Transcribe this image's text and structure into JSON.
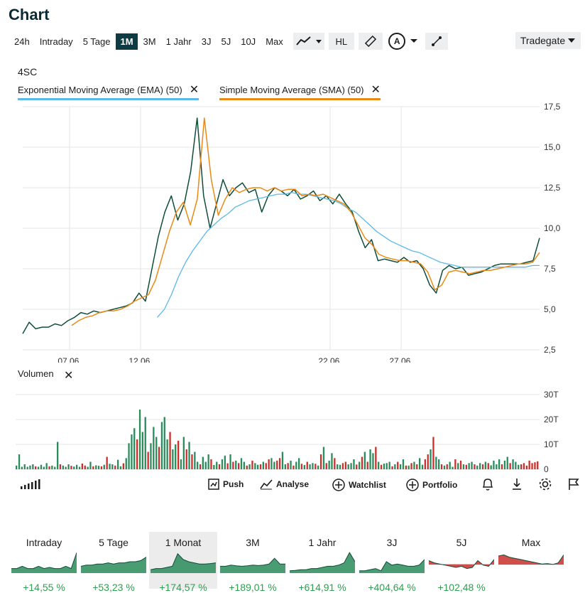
{
  "title": "Chart",
  "ranges": [
    "24h",
    "Intraday",
    "5 Tage",
    "1M",
    "3M",
    "1 Jahr",
    "3J",
    "5J",
    "10J",
    "Max"
  ],
  "active_range": "1M",
  "tools": {
    "hl_label": "HL",
    "annotation_label": "A"
  },
  "exchange": "Tradegate",
  "symbol": "4SC",
  "indicators": [
    {
      "label": "Exponential Moving Average (EMA) (50)",
      "color": "#5bb8e8"
    },
    {
      "label": "Simple Moving Average (SMA) (50)",
      "color": "#e07b12"
    }
  ],
  "close_symbol": "✕",
  "volume_label": "Volumen",
  "colors": {
    "price": "#0e4d3a",
    "up": "#2a8c5b",
    "down": "#c9302c",
    "ema": "#5bb8e8",
    "sma": "#e98a15",
    "grid": "#e5e5e5"
  },
  "actions": {
    "push": "Push",
    "analyse": "Analyse",
    "watchlist": "Watchlist",
    "portfolio": "Portfolio"
  },
  "chart_data": {
    "type": "line",
    "ylim": [
      2.5,
      17.5
    ],
    "y_ticks": [
      "17,5",
      "15,0",
      "12,5",
      "10,0",
      "7,5",
      "5,0",
      "2,5"
    ],
    "x_ticks": [
      "07.06.",
      "12.06.",
      "22.06.",
      "27.06."
    ],
    "series": [
      {
        "name": "4SC",
        "values": [
          3.5,
          4.2,
          3.8,
          3.9,
          3.9,
          4.1,
          4.0,
          4.3,
          4.5,
          4.8,
          4.7,
          4.9,
          4.8,
          4.9,
          5.0,
          5.1,
          5.2,
          5.4,
          6.0,
          5.5,
          7.5,
          9.5,
          11.0,
          12.0,
          10.5,
          11.5,
          13.5,
          16.8,
          12.0,
          10.0,
          11.5,
          13.0,
          12.0,
          12.5,
          12.8,
          12.2,
          12.4,
          11.0,
          12.0,
          12.5,
          12.3,
          12.0,
          12.4,
          11.8,
          12.0,
          12.3,
          11.7,
          12.0,
          11.5,
          12.1,
          11.5,
          11.0,
          9.8,
          8.8,
          9.3,
          8.0,
          8.1,
          8.0,
          7.9,
          8.2,
          7.9,
          8.0,
          7.5,
          6.5,
          6.0,
          7.4,
          7.7,
          7.5,
          7.6,
          7.1,
          7.2,
          7.3,
          7.5,
          7.7,
          7.8,
          7.8,
          7.8,
          7.8,
          7.9,
          8.0,
          9.4
        ]
      },
      {
        "name": "EMA (50)",
        "values": [
          null,
          null,
          null,
          null,
          null,
          null,
          null,
          null,
          null,
          null,
          null,
          null,
          null,
          null,
          null,
          null,
          null,
          null,
          null,
          4.5,
          5.0,
          5.9,
          7.0,
          7.9,
          8.6,
          9.2,
          9.8,
          10.2,
          10.6,
          10.9,
          11.3,
          11.5,
          11.7,
          11.8,
          11.9,
          12.0,
          12.1,
          12.1,
          12.2,
          12.1,
          12.1,
          12.0,
          11.9,
          11.8,
          11.7,
          11.5,
          11.2,
          11.0,
          10.6,
          10.2,
          9.8,
          9.5,
          9.2,
          9.0,
          8.8,
          8.6,
          8.5,
          8.3,
          8.1,
          7.9,
          7.8,
          7.7,
          7.6,
          7.6,
          7.6,
          7.6,
          7.6,
          7.6,
          7.6,
          7.6,
          7.6,
          7.6,
          7.7,
          7.7
        ]
      },
      {
        "name": "SMA (50)",
        "values": [
          null,
          null,
          null,
          null,
          null,
          null,
          null,
          4.0,
          4.3,
          4.5,
          4.6,
          4.8,
          4.9,
          4.9,
          5.0,
          5.2,
          5.5,
          5.7,
          5.9,
          6.8,
          8.3,
          9.8,
          11.0,
          11.6,
          10.2,
          11.8,
          16.8,
          13.0,
          10.8,
          11.8,
          12.5,
          12.2,
          12.4,
          12.5,
          12.5,
          12.3,
          12.5,
          12.3,
          12.4,
          12.4,
          12.0,
          12.1,
          12.0,
          12.1,
          11.9,
          11.7,
          11.5,
          11.0,
          10.2,
          9.4,
          9.0,
          8.4,
          8.2,
          8.1,
          8.0,
          8.0,
          7.9,
          7.8,
          7.3,
          6.2,
          6.5,
          7.3,
          7.4,
          7.3,
          7.2,
          7.3,
          7.4,
          7.4,
          7.5,
          7.6,
          7.7,
          7.8,
          7.8,
          7.9,
          8.5
        ]
      }
    ],
    "volume": {
      "ylim": [
        0,
        30
      ],
      "y_ticks": [
        "30T",
        "20T",
        "10T",
        "0"
      ],
      "values": [
        1.5,
        6,
        1,
        2,
        1,
        1.5,
        2,
        1.2,
        1,
        1.8,
        1,
        2.5,
        1.2,
        1.5,
        1,
        11,
        2,
        1.5,
        1,
        2,
        1.4,
        1.1,
        1.8,
        1,
        2.3,
        1.5,
        1,
        3,
        1.2,
        1.6,
        1.4,
        1.2,
        1.8,
        5,
        2.2,
        2,
        1.5,
        3.8,
        1.2,
        2.4,
        4.5,
        10.5,
        14,
        16.5,
        12,
        24,
        15,
        21,
        7,
        10.5,
        17,
        13,
        9,
        19,
        21,
        12,
        15,
        8,
        10,
        11.5,
        4,
        13,
        8,
        11,
        6,
        7,
        3,
        2,
        5,
        3,
        6,
        4,
        1.7,
        3,
        2,
        4,
        5.5,
        2.4,
        6,
        3,
        3.5,
        2.5,
        4.5,
        3,
        1.5,
        2,
        3.5,
        2.5,
        1.8,
        2,
        3,
        2.5,
        4,
        4.5,
        3,
        3.5,
        4.5,
        7,
        2,
        2.5,
        3.5,
        1.5,
        3,
        4.5,
        2.2,
        1.7,
        3,
        2,
        2.5,
        2.2,
        1.5,
        6,
        9,
        2.5,
        3.5,
        6.5,
        4.5,
        2,
        1.8,
        2.5,
        3,
        2,
        2.5,
        4,
        1.9,
        3,
        5,
        7,
        3,
        8,
        6.5,
        9,
        3,
        1.8,
        2.3,
        2.5,
        3,
        1.2,
        2,
        3,
        2,
        4,
        1.5,
        1.5,
        2.5,
        3,
        2,
        4.5,
        1.8,
        4,
        6,
        8,
        13,
        5,
        4,
        2,
        1.5,
        2,
        3,
        1,
        4,
        2.5,
        3.5,
        2,
        1.8,
        2.5,
        3,
        2,
        1.5,
        2.5,
        2,
        3,
        2.5,
        1.6,
        3.5,
        2,
        4,
        2,
        3.5,
        5,
        2.5,
        4,
        3,
        1.8,
        2,
        2.5,
        1.5,
        3.5,
        2.5,
        2.8,
        3.2
      ],
      "up": [
        1,
        1,
        1,
        1,
        1,
        1,
        1,
        0,
        1,
        1,
        1,
        1,
        0,
        1,
        1,
        1,
        0,
        1,
        1,
        1,
        0,
        1,
        1,
        1,
        0,
        0,
        1,
        1,
        0,
        1,
        1,
        0,
        1,
        0,
        1,
        1,
        0,
        1,
        1,
        0,
        1,
        1,
        1,
        1,
        0,
        1,
        1,
        1,
        0,
        1,
        1,
        1,
        0,
        1,
        1,
        1,
        0,
        1,
        1,
        0,
        1,
        1,
        0,
        1,
        0,
        1,
        1,
        0,
        1,
        1,
        1,
        0,
        1,
        1,
        0,
        1,
        1,
        0,
        1,
        0,
        1,
        0,
        1,
        1,
        0,
        1,
        0,
        1,
        1,
        0,
        1,
        0,
        0,
        1,
        1,
        0,
        0,
        1,
        1,
        0,
        1,
        0,
        1,
        1,
        0,
        1,
        0,
        1,
        1,
        0,
        1,
        0,
        1,
        0,
        1,
        1,
        0,
        1,
        1,
        0,
        0,
        1,
        1,
        1,
        0,
        1,
        0,
        1,
        0,
        1,
        1,
        0,
        1,
        0,
        1,
        1,
        1,
        0,
        1,
        0,
        1,
        1,
        0,
        1,
        0,
        1,
        0,
        1,
        1,
        0,
        0,
        1,
        0,
        1,
        1,
        0,
        1,
        0,
        1,
        1,
        0,
        1,
        0,
        1,
        0,
        1,
        1,
        0,
        1,
        1,
        0,
        1,
        0,
        1,
        1,
        1,
        1,
        0,
        1,
        1,
        0,
        1,
        1,
        1
      ]
    }
  },
  "tiles": [
    {
      "label": "Intraday",
      "change": "+14,55 %",
      "trend": "up",
      "spark": [
        0.2,
        0.2,
        0.3,
        0.2,
        0.2,
        0.3,
        0.2,
        0.25,
        0.2,
        0.2,
        0.3,
        0.2,
        0.9
      ]
    },
    {
      "label": "5 Tage",
      "change": "+53,23 %",
      "trend": "up",
      "spark": [
        0.3,
        0.35,
        0.35,
        0.4,
        0.4,
        0.45,
        0.4,
        0.45,
        0.45,
        0.5,
        0.5,
        0.55,
        0.7
      ]
    },
    {
      "label": "1 Monat",
      "change": "+174,57 %",
      "trend": "up",
      "spark": [
        0.15,
        0.2,
        0.2,
        0.25,
        0.3,
        0.85,
        0.6,
        0.5,
        0.45,
        0.4,
        0.4,
        0.42,
        0.45
      ]
    },
    {
      "label": "3M",
      "change": "+189,01 %",
      "trend": "up",
      "spark": [
        0.3,
        0.3,
        0.35,
        0.32,
        0.3,
        0.32,
        0.35,
        0.33,
        0.35,
        0.4,
        0.65,
        0.4,
        0.4
      ]
    },
    {
      "label": "1 Jahr",
      "change": "+614,91 %",
      "trend": "up",
      "spark": [
        0.1,
        0.12,
        0.15,
        0.15,
        0.2,
        0.2,
        0.25,
        0.3,
        0.3,
        0.35,
        0.45,
        0.9,
        0.5
      ]
    },
    {
      "label": "3J",
      "change": "+404,64 %",
      "trend": "up",
      "spark": [
        0.1,
        0.1,
        0.15,
        0.2,
        0.1,
        0.5,
        0.35,
        0.4,
        0.35,
        0.3,
        0.3,
        0.35,
        0.6
      ]
    },
    {
      "label": "5J",
      "change": "+102,48 %",
      "trend": "mixed",
      "spark": [
        0.55,
        0.45,
        0.4,
        0.35,
        0.3,
        0.25,
        0.3,
        0.2,
        0.25,
        0.55,
        0.35,
        0.3,
        0.6
      ]
    },
    {
      "label": "Max",
      "change": "",
      "trend": "mixed",
      "spark": [
        0.75,
        0.8,
        0.7,
        0.65,
        0.6,
        0.55,
        0.5,
        0.45,
        0.4,
        0.42,
        0.38,
        0.45,
        0.8
      ]
    }
  ]
}
